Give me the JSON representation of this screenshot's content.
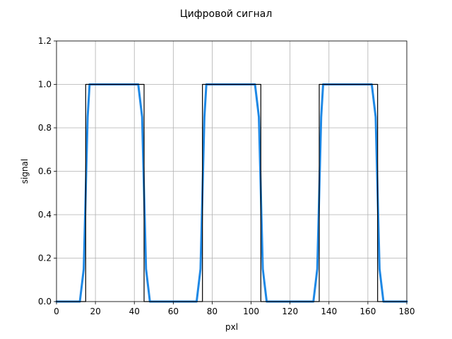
{
  "chart_data": {
    "type": "line",
    "title": "Цифровой сигнал",
    "xlabel": "pxl",
    "ylabel": "signal",
    "xlim": [
      0,
      180
    ],
    "ylim": [
      0,
      1.2
    ],
    "xticks": [
      0,
      20,
      40,
      60,
      80,
      100,
      120,
      140,
      160,
      180
    ],
    "yticks": [
      0.0,
      0.2,
      0.4,
      0.6,
      0.8,
      1.0,
      1.2
    ],
    "xtick_labels": [
      "0",
      "20",
      "40",
      "60",
      "80",
      "100",
      "120",
      "140",
      "160",
      "180"
    ],
    "ytick_labels": [
      "0.0",
      "0.2",
      "0.4",
      "0.6",
      "0.8",
      "1.0",
      "1.2"
    ],
    "grid": true,
    "series": [
      {
        "color": "#000000",
        "style": "step",
        "x": [
          0,
          15,
          15,
          45,
          45,
          75,
          75,
          105,
          105,
          135,
          135,
          165,
          165,
          180
        ],
        "y": [
          0,
          0,
          1,
          1,
          0,
          0,
          1,
          1,
          0,
          0,
          1,
          1,
          0,
          0
        ]
      },
      {
        "color": "#1e88e5",
        "style": "smooth",
        "x": [
          0,
          12,
          14,
          16,
          17,
          42,
          44,
          46,
          48,
          72,
          74,
          76,
          77,
          102,
          104,
          106,
          108,
          132,
          134,
          136,
          137,
          162,
          164,
          166,
          168,
          180
        ],
        "y": [
          0,
          0,
          0.15,
          0.85,
          1,
          1,
          0.85,
          0.15,
          0,
          0,
          0.15,
          0.85,
          1,
          1,
          0.85,
          0.15,
          0,
          0,
          0.15,
          0.85,
          1,
          1,
          0.85,
          0.15,
          0,
          0
        ]
      }
    ]
  }
}
